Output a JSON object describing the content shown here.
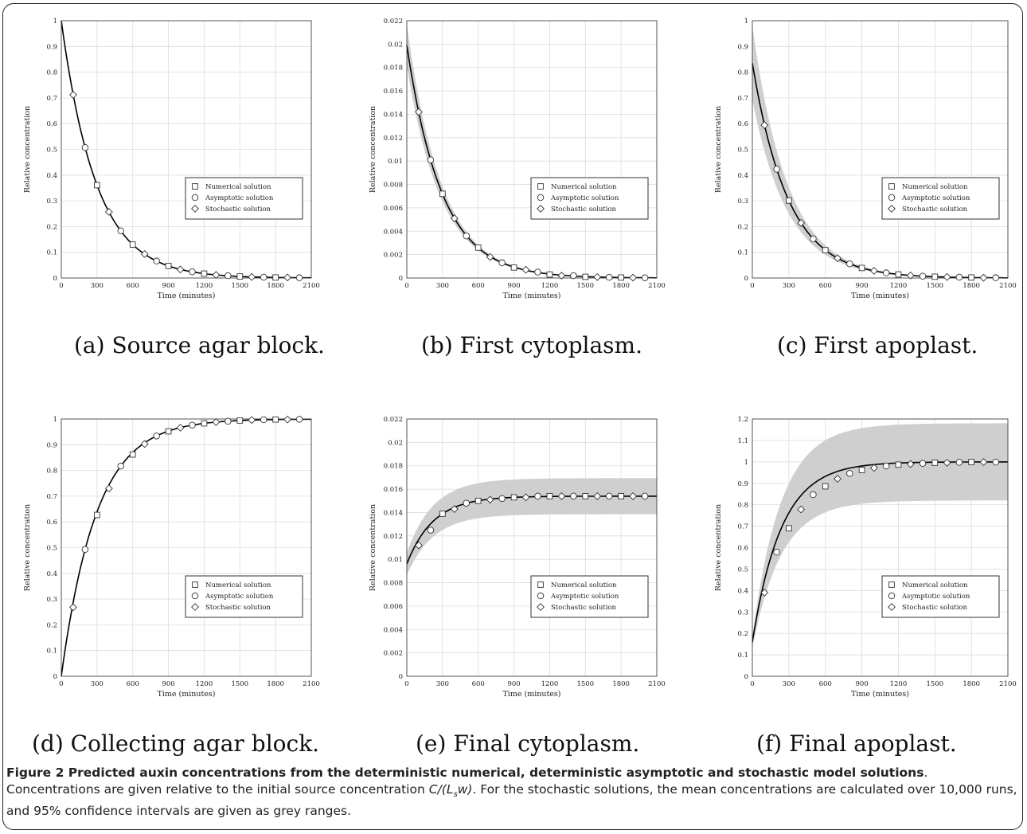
{
  "common": {
    "xlabel": "Time (minutes)",
    "ylabel": "Relative concentration",
    "legend": [
      "Numerical solution",
      "Asymptotic solution",
      "Stochastic solution"
    ],
    "legend_position": "right-middle",
    "band_color": "#cfcfcf",
    "line_color": "#000000"
  },
  "chart_data": [
    {
      "type": "line",
      "panel": "a",
      "caption": "(a) Source agar block.",
      "xlim": [
        0,
        2100
      ],
      "xticks": [
        "0",
        "300",
        "600",
        "900",
        "1200",
        "1500",
        "1800",
        "2100"
      ],
      "ylim": [
        0,
        1
      ],
      "yticks": [
        "0",
        "0.1",
        "0.2",
        "0.3",
        "0.4",
        "0.5",
        "0.6",
        "0.7",
        "0.8",
        "0.9",
        "1"
      ],
      "model": {
        "kind": "decay",
        "A": 0,
        "B": 1,
        "k": 0.0034,
        "bandHalf": 0
      },
      "series": [
        {
          "name": "Numerical solution",
          "marker": "square",
          "x": [
            300,
            600,
            900,
            1200,
            1500,
            1800
          ],
          "y": [
            0.361,
            0.13,
            0.047,
            0.017,
            0.006,
            0.002
          ]
        },
        {
          "name": "Asymptotic solution",
          "marker": "circle",
          "x": [
            200,
            500,
            800,
            1100,
            1400,
            1700,
            2000
          ],
          "y": [
            0.507,
            0.183,
            0.066,
            0.024,
            0.009,
            0.003,
            0.001
          ]
        },
        {
          "name": "Stochastic solution",
          "marker": "diamond",
          "x": [
            100,
            400,
            700,
            1000,
            1300,
            1600,
            1900
          ],
          "y": [
            0.712,
            0.257,
            0.093,
            0.033,
            0.012,
            0.004,
            0.002
          ]
        }
      ]
    },
    {
      "type": "line",
      "panel": "b",
      "caption": "(b) First cytoplasm.",
      "xlim": [
        0,
        2100
      ],
      "xticks": [
        "0",
        "300",
        "600",
        "900",
        "1200",
        "1500",
        "1800",
        "2100"
      ],
      "ylim": [
        0,
        0.022
      ],
      "yticks": [
        "0",
        "0.002",
        "0.004",
        "0.006",
        "0.008",
        "0.01",
        "0.012",
        "0.014",
        "0.016",
        "0.018",
        "0.02",
        "0.022"
      ],
      "model": {
        "kind": "decay",
        "A": 0,
        "B": 0.0199,
        "k": 0.0034,
        "bandHalf": 0.09
      },
      "series": [
        {
          "name": "Numerical solution",
          "marker": "square",
          "x": [
            300,
            600,
            900,
            1200,
            1500,
            1800
          ],
          "y": [
            0.0072,
            0.0026,
            0.0009,
            0.0003,
            0.0001,
            4e-05
          ]
        },
        {
          "name": "Asymptotic solution",
          "marker": "circle",
          "x": [
            200,
            500,
            800,
            1100,
            1400,
            1700,
            2000
          ],
          "y": [
            0.0101,
            0.0036,
            0.0013,
            0.0005,
            0.0002,
            6e-05,
            2e-05
          ]
        },
        {
          "name": "Stochastic solution",
          "marker": "diamond",
          "x": [
            100,
            400,
            700,
            1000,
            1300,
            1600,
            1900
          ],
          "y": [
            0.0142,
            0.0051,
            0.0018,
            0.0007,
            0.0002,
            8e-05,
            3e-05
          ]
        }
      ]
    },
    {
      "type": "line",
      "panel": "c",
      "caption": "(c) First apoplast.",
      "xlim": [
        0,
        2100
      ],
      "xticks": [
        "0",
        "300",
        "600",
        "900",
        "1200",
        "1500",
        "1800",
        "2100"
      ],
      "ylim": [
        0,
        1
      ],
      "yticks": [
        "0",
        "0.1",
        "0.2",
        "0.3",
        "0.4",
        "0.5",
        "0.6",
        "0.7",
        "0.8",
        "0.9",
        "1"
      ],
      "model": {
        "kind": "decay",
        "A": 0,
        "B": 0.835,
        "k": 0.0034,
        "bandHalf": 0.17
      },
      "series": [
        {
          "name": "Numerical solution",
          "marker": "square",
          "x": [
            300,
            600,
            900,
            1200,
            1500,
            1800
          ],
          "y": [
            0.301,
            0.108,
            0.039,
            0.014,
            0.005,
            0.002
          ]
        },
        {
          "name": "Asymptotic solution",
          "marker": "circle",
          "x": [
            200,
            500,
            800,
            1100,
            1400,
            1700,
            2000
          ],
          "y": [
            0.423,
            0.152,
            0.055,
            0.02,
            0.007,
            0.003,
            0.001
          ]
        },
        {
          "name": "Stochastic solution",
          "marker": "diamond",
          "x": [
            100,
            400,
            700,
            1000,
            1300,
            1600,
            1900
          ],
          "y": [
            0.594,
            0.214,
            0.077,
            0.028,
            0.01,
            0.004,
            0.001
          ]
        }
      ]
    },
    {
      "type": "line",
      "panel": "d",
      "caption": "(d) Collecting agar block.",
      "xlim": [
        0,
        2100
      ],
      "xticks": [
        "0",
        "300",
        "600",
        "900",
        "1200",
        "1500",
        "1800",
        "2100"
      ],
      "ylim": [
        0,
        1
      ],
      "yticks": [
        "0",
        "0.1",
        "0.2",
        "0.3",
        "0.4",
        "0.5",
        "0.6",
        "0.7",
        "0.8",
        "0.9",
        "1"
      ],
      "model": {
        "kind": "rise",
        "A": 1,
        "B": 1,
        "k": 0.0034,
        "bandHalf": 0
      },
      "series": [
        {
          "name": "Numerical solution",
          "marker": "square",
          "x": [
            300,
            600,
            900,
            1200,
            1500,
            1800
          ],
          "y": [
            0.627,
            0.862,
            0.952,
            0.983,
            0.994,
            0.998
          ]
        },
        {
          "name": "Asymptotic solution",
          "marker": "circle",
          "x": [
            200,
            500,
            800,
            1100,
            1400,
            1700,
            2000
          ],
          "y": [
            0.493,
            0.817,
            0.934,
            0.976,
            0.991,
            0.997,
            0.999
          ]
        },
        {
          "name": "Stochastic solution",
          "marker": "diamond",
          "x": [
            100,
            400,
            700,
            1000,
            1300,
            1600,
            1900
          ],
          "y": [
            0.268,
            0.73,
            0.903,
            0.966,
            0.988,
            0.996,
            0.998
          ]
        }
      ]
    },
    {
      "type": "line",
      "panel": "e",
      "caption": "(e) Final cytoplasm.",
      "xlim": [
        0,
        2100
      ],
      "xticks": [
        "0",
        "300",
        "600",
        "900",
        "1200",
        "1500",
        "1800",
        "2100"
      ],
      "ylim": [
        0,
        0.022
      ],
      "yticks": [
        "0",
        "0.002",
        "0.004",
        "0.006",
        "0.008",
        "0.01",
        "0.012",
        "0.014",
        "0.016",
        "0.018",
        "0.02",
        "0.022"
      ],
      "model": {
        "kind": "rise",
        "A": 0.0154,
        "B": 0.0058,
        "k": 0.0045,
        "bandHalf": 0.1
      },
      "series": [
        {
          "name": "Numerical solution",
          "marker": "square",
          "x": [
            300,
            600,
            900,
            1200,
            1500,
            1800
          ],
          "y": [
            0.0139,
            0.015,
            0.0153,
            0.0154,
            0.0154,
            0.0154
          ]
        },
        {
          "name": "Asymptotic solution",
          "marker": "circle",
          "x": [
            200,
            500,
            800,
            1100,
            1400,
            1700,
            2000
          ],
          "y": [
            0.0125,
            0.0148,
            0.0152,
            0.0154,
            0.0154,
            0.0154,
            0.0154
          ]
        },
        {
          "name": "Stochastic solution",
          "marker": "diamond",
          "x": [
            100,
            400,
            700,
            1000,
            1300,
            1600,
            1900
          ],
          "y": [
            0.0112,
            0.0143,
            0.0151,
            0.0153,
            0.0154,
            0.0154,
            0.0154
          ]
        }
      ]
    },
    {
      "type": "line",
      "panel": "f",
      "caption": "(f) Final apoplast.",
      "xlim": [
        0,
        2100
      ],
      "xticks": [
        "0",
        "300",
        "600",
        "900",
        "1200",
        "1500",
        "1800",
        "2100"
      ],
      "ylim": [
        0,
        1.2
      ],
      "yticks": [
        "0",
        "0.1",
        "0.2",
        "0.3",
        "0.4",
        "0.5",
        "0.6",
        "0.7",
        "0.8",
        "0.9",
        "1",
        "1.1",
        "1.2"
      ],
      "model": {
        "kind": "rise",
        "A": 1,
        "B": 0.84,
        "k": 0.0042,
        "bandHalf": 0.18
      },
      "series": [
        {
          "name": "Numerical solution",
          "marker": "square",
          "x": [
            300,
            600,
            900,
            1200,
            1500,
            1800
          ],
          "y": [
            0.69,
            0.886,
            0.962,
            0.987,
            0.996,
            0.999
          ]
        },
        {
          "name": "Asymptotic solution",
          "marker": "circle",
          "x": [
            200,
            500,
            800,
            1100,
            1400,
            1700,
            2000
          ],
          "y": [
            0.579,
            0.847,
            0.946,
            0.981,
            0.993,
            0.998,
            0.999
          ]
        },
        {
          "name": "Stochastic solution",
          "marker": "diamond",
          "x": [
            100,
            400,
            700,
            1000,
            1300,
            1600,
            1900
          ],
          "y": [
            0.39,
            0.778,
            0.921,
            0.972,
            0.99,
            0.996,
            0.999
          ]
        }
      ]
    }
  ],
  "figure_caption": {
    "title": "Figure 2 Predicted auxin concentrations from the deterministic numerical, deterministic asymptotic and stochastic model solutions",
    "text_before": "Concentrations are given relative to the initial source concentration ",
    "formula": "C/(L",
    "formula_sub": "s",
    "formula_end": "w)",
    "text_after": ". For the stochastic solutions, the mean concentrations are calculated over 10,000 runs, and 95% confidence intervals are given as grey ranges."
  }
}
